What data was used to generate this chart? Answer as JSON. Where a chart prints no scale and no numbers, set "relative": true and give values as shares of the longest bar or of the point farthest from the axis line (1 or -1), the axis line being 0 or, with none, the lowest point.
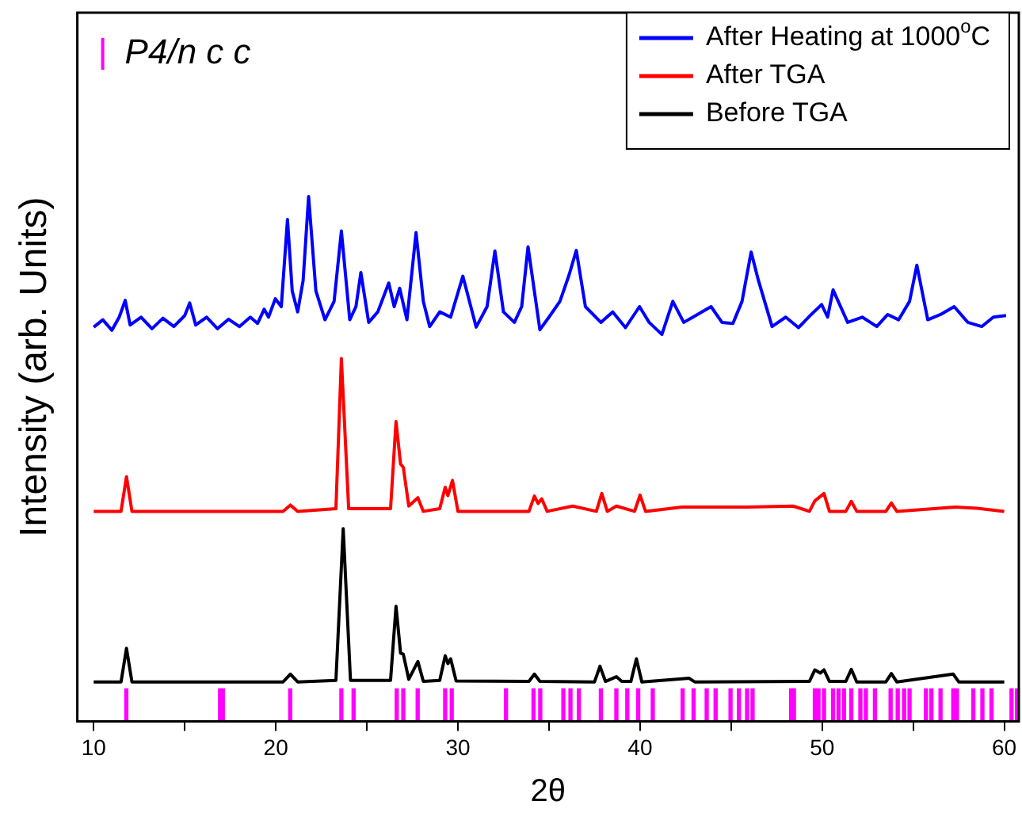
{
  "chart_data": {
    "type": "line",
    "relative": true,
    "xlabel": "2θ",
    "ylabel": "Intensity (arb. Units)",
    "xlim": [
      9.1,
      60.8
    ],
    "xticks": [
      10,
      {
        "value": 15,
        "label": null
      },
      20,
      {
        "value": 25,
        "label": null
      },
      30,
      {
        "value": 35,
        "label": null
      },
      40,
      {
        "value": 45,
        "label": null
      },
      50,
      {
        "value": 55,
        "label": null
      },
      60
    ],
    "legend": "top right",
    "grid": false,
    "marker": "none",
    "line_style": "solid",
    "series": [
      {
        "name": "After Heating at 1000$^{o}$C",
        "color": "#0000ff",
        "x": [
          10.0,
          10.5,
          11.0,
          11.4,
          11.73,
          12.0,
          12.6,
          13.2,
          13.8,
          14.4,
          15.0,
          15.27,
          15.6,
          16.2,
          16.8,
          17.4,
          18.0,
          18.6,
          19.0,
          19.36,
          19.6,
          19.97,
          20.3,
          20.64,
          20.9,
          21.2,
          21.5,
          21.8,
          22.2,
          22.7,
          23.2,
          23.6,
          24.06,
          24.4,
          24.67,
          25.1,
          25.6,
          26.2,
          26.5,
          26.8,
          27.2,
          27.7,
          28.1,
          28.45,
          29.0,
          29.6,
          30.27,
          31.0,
          31.6,
          32.03,
          32.5,
          33.1,
          33.5,
          33.85,
          34.5,
          35.0,
          35.6,
          36.1,
          36.5,
          37.0,
          37.85,
          38.5,
          39.2,
          39.97,
          40.5,
          41.2,
          41.8,
          42.4,
          43.0,
          43.9,
          44.5,
          45.1,
          45.6,
          46.1,
          46.5,
          47.25,
          48.0,
          48.7,
          49.4,
          49.97,
          50.3,
          50.6,
          51.4,
          52.2,
          53.0,
          53.6,
          54.2,
          54.8,
          55.2,
          55.8,
          56.5,
          57.25,
          58.0,
          58.76,
          59.4,
          60.1
        ],
        "values": [
          0.751,
          0.765,
          0.745,
          0.77,
          0.802,
          0.755,
          0.77,
          0.748,
          0.768,
          0.752,
          0.773,
          0.797,
          0.755,
          0.77,
          0.748,
          0.766,
          0.752,
          0.77,
          0.758,
          0.785,
          0.77,
          0.805,
          0.79,
          0.956,
          0.82,
          0.78,
          0.84,
          1,
          0.82,
          0.765,
          0.8,
          0.934,
          0.765,
          0.79,
          0.855,
          0.76,
          0.78,
          0.835,
          0.79,
          0.825,
          0.765,
          0.931,
          0.8,
          0.752,
          0.78,
          0.77,
          0.848,
          0.751,
          0.79,
          0.896,
          0.78,
          0.76,
          0.79,
          0.904,
          0.746,
          0.77,
          0.8,
          0.85,
          0.897,
          0.79,
          0.76,
          0.78,
          0.75,
          0.79,
          0.76,
          0.737,
          0.8,
          0.76,
          0.772,
          0.79,
          0.76,
          0.758,
          0.8,
          0.894,
          0.84,
          0.752,
          0.77,
          0.75,
          0.775,
          0.794,
          0.77,
          0.822,
          0.76,
          0.77,
          0.752,
          0.775,
          0.765,
          0.8,
          0.869,
          0.765,
          0.775,
          0.79,
          0.76,
          0.752,
          0.77,
          0.773
        ]
      },
      {
        "name": "After TGA",
        "color": "#ff0000",
        "x": [
          10,
          11.5,
          11.8,
          12.1,
          20.4,
          20.8,
          21.2,
          23.3,
          23.6,
          24.0,
          26.3,
          26.6,
          26.85,
          27.0,
          27.3,
          27.8,
          28.1,
          29.0,
          29.3,
          29.45,
          29.7,
          30.0,
          33.9,
          34.2,
          34.4,
          34.6,
          34.9,
          36.3,
          37.6,
          37.9,
          38.2,
          38.7,
          39.7,
          40.0,
          40.3,
          42.3,
          45.9,
          48.4,
          49.3,
          49.6,
          50.1,
          50.4,
          51.3,
          51.6,
          51.9,
          53.5,
          53.8,
          54.1,
          57.3,
          58.5,
          60
        ],
        "values": [
          0.4,
          0.4,
          0.466,
          0.4,
          0.4,
          0.412,
          0.4,
          0.405,
          0.691,
          0.405,
          0.405,
          0.571,
          0.49,
          0.484,
          0.41,
          0.426,
          0.4,
          0.405,
          0.446,
          0.43,
          0.459,
          0.4,
          0.4,
          0.429,
          0.415,
          0.424,
          0.4,
          0.41,
          0.4,
          0.434,
          0.4,
          0.41,
          0.4,
          0.431,
          0.4,
          0.408,
          0.408,
          0.41,
          0.4,
          0.42,
          0.434,
          0.4,
          0.4,
          0.419,
          0.4,
          0.4,
          0.416,
          0.4,
          0.408,
          0.406,
          0.4
        ]
      },
      {
        "name": "Before TGA",
        "color": "#000000",
        "x": [
          10,
          11.5,
          11.8,
          12.1,
          20.4,
          20.8,
          21.2,
          23.3,
          23.7,
          24.1,
          26.3,
          26.6,
          26.85,
          27.0,
          27.3,
          27.8,
          28.1,
          29.0,
          29.3,
          29.45,
          29.6,
          29.9,
          33.9,
          34.2,
          34.5,
          37.5,
          37.8,
          38.1,
          38.7,
          39.0,
          39.5,
          39.8,
          40.1,
          42.7,
          43.0,
          49.3,
          49.6,
          49.9,
          50.1,
          50.4,
          51.3,
          51.6,
          51.9,
          53.5,
          53.8,
          54.1,
          57.2,
          57.5,
          60
        ],
        "values": [
          0.075,
          0.075,
          0.139,
          0.075,
          0.075,
          0.09,
          0.075,
          0.078,
          0.367,
          0.078,
          0.078,
          0.219,
          0.13,
          0.128,
          0.08,
          0.114,
          0.076,
          0.078,
          0.125,
          0.11,
          0.119,
          0.077,
          0.076,
          0.09,
          0.076,
          0.075,
          0.105,
          0.076,
          0.085,
          0.076,
          0.076,
          0.119,
          0.075,
          0.082,
          0.075,
          0.076,
          0.098,
          0.092,
          0.098,
          0.076,
          0.076,
          0.099,
          0.075,
          0.075,
          0.091,
          0.075,
          0.09,
          0.075,
          0.075
        ]
      },
      {
        "name": "P4/n c c",
        "type": "bar",
        "color": "#ff00ff",
        "x": [
          11.79,
          16.94,
          17.09,
          20.79,
          23.6,
          24.27,
          26.64,
          27.0,
          27.79,
          29.3,
          29.66,
          32.64,
          34.15,
          34.52,
          35.79,
          36.18,
          36.64,
          37.85,
          38.7,
          39.3,
          39.9,
          40.7,
          42.34,
          42.94,
          43.66,
          44.15,
          44.97,
          45.43,
          45.88,
          46.18,
          48.3,
          48.45,
          49.6,
          49.8,
          50.1,
          50.6,
          50.9,
          51.2,
          51.6,
          52.1,
          52.4,
          52.9,
          53.76,
          54.15,
          54.5,
          54.8,
          55.7,
          56.0,
          56.5,
          57.2,
          57.4,
          58.3,
          58.8,
          59.3,
          60.4,
          60.7
        ],
        "values": [
          0.062,
          0.062,
          0.062,
          0.062,
          0.062,
          0.062,
          0.062,
          0.062,
          0.062,
          0.062,
          0.062,
          0.062,
          0.062,
          0.062,
          0.062,
          0.062,
          0.062,
          0.062,
          0.062,
          0.062,
          0.062,
          0.062,
          0.062,
          0.062,
          0.062,
          0.062,
          0.062,
          0.062,
          0.062,
          0.062,
          0.062,
          0.062,
          0.062,
          0.062,
          0.062,
          0.062,
          0.062,
          0.062,
          0.062,
          0.062,
          0.062,
          0.062,
          0.062,
          0.062,
          0.062,
          0.062,
          0.062,
          0.062,
          0.062,
          0.062,
          0.062,
          0.062,
          0.062,
          0.062,
          0.062,
          0.062
        ]
      }
    ]
  }
}
